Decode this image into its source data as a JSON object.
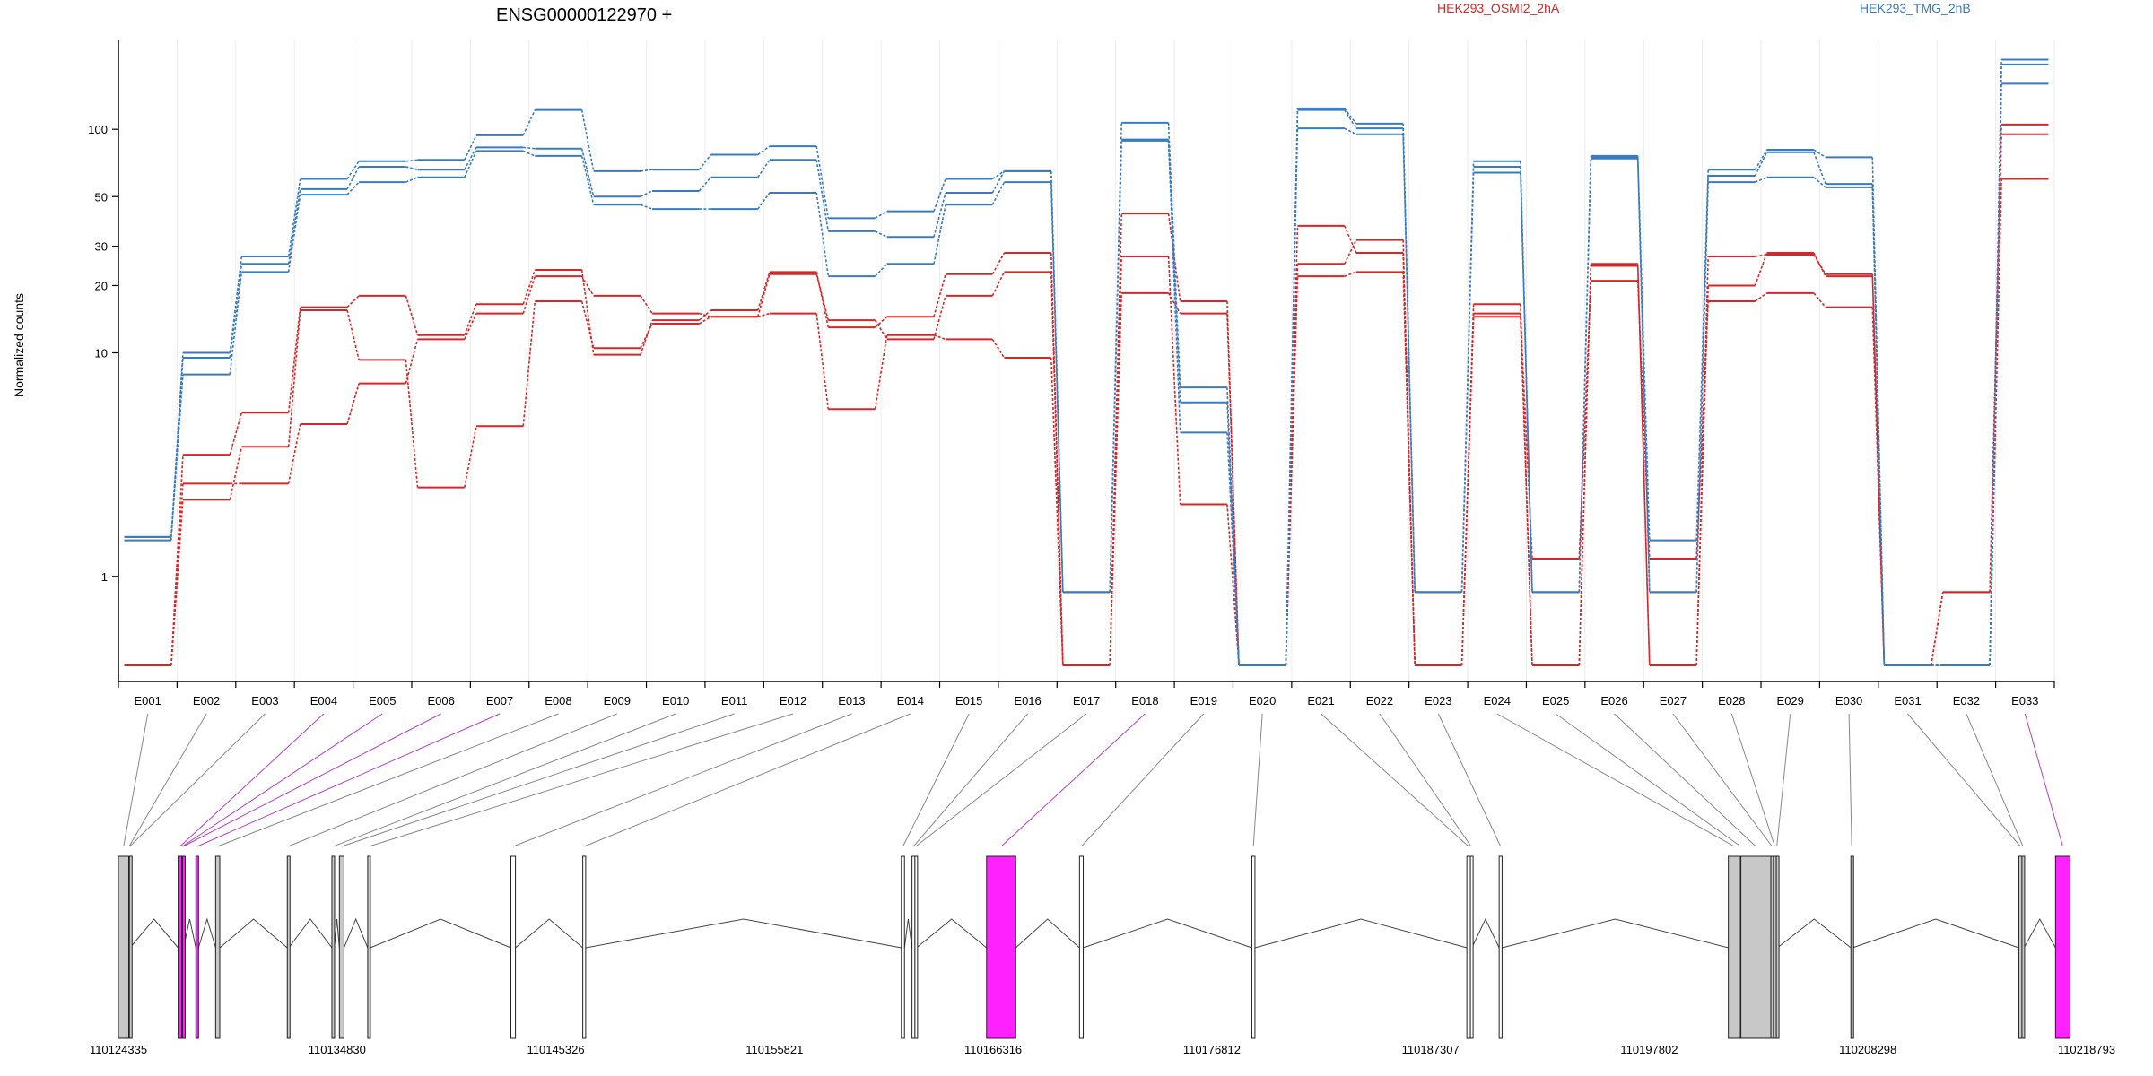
{
  "chart_data": {
    "type": "line",
    "title": "ENSG00000122970 +",
    "ylabel": "Normalized counts",
    "yscale": "log",
    "yticks": [
      1,
      10,
      20,
      30,
      50,
      100
    ],
    "ylim": [
      0.4,
      250
    ],
    "zero_floor": 0.4,
    "categories": [
      "E001",
      "E002",
      "E003",
      "E004",
      "E005",
      "E006",
      "E007",
      "E008",
      "E009",
      "E010",
      "E011",
      "E012",
      "E013",
      "E014",
      "E015",
      "E016",
      "E017",
      "E018",
      "E019",
      "E020",
      "E021",
      "E022",
      "E023",
      "E024",
      "E025",
      "E026",
      "E027",
      "E028",
      "E029",
      "E030",
      "E031",
      "E032",
      "E033"
    ],
    "series": [
      {
        "name": "HEK293_OSMI2_2hA",
        "color": "#d62728",
        "values": [
          0.4,
          2.2,
          3.8,
          15.5,
          9.3,
          2.5,
          4.7,
          17,
          10.5,
          13.5,
          14.5,
          15,
          5.6,
          12,
          11.5,
          9.5,
          0.4,
          18.5,
          15,
          0.4,
          22,
          23,
          0.4,
          15,
          1.2,
          21,
          1.2,
          17,
          18.5,
          16,
          0.4,
          0.4,
          60
        ]
      },
      {
        "name": "HEK293_OSMI2_2hA",
        "color": "#d62728",
        "values": [
          0.4,
          2.6,
          2.6,
          4.8,
          7.3,
          11.5,
          15,
          22,
          18,
          15,
          14.5,
          22.5,
          14,
          11.5,
          18,
          23,
          0.4,
          27,
          2.1,
          0.4,
          37,
          28,
          0.4,
          14.5,
          0.4,
          24.5,
          0.4,
          27,
          27.5,
          22.5,
          0.4,
          0.85,
          95
        ]
      },
      {
        "name": "HEK293_OSMI2_2hA",
        "color": "#d62728",
        "values": [
          0.4,
          3.5,
          5.4,
          16,
          18,
          12,
          16.5,
          23.5,
          9.8,
          14,
          15.5,
          23,
          13,
          14.5,
          22.5,
          28,
          0.4,
          42,
          17,
          0.4,
          25,
          32,
          0.4,
          16.5,
          0.4,
          25,
          0.4,
          20,
          28,
          22,
          0.4,
          0.85,
          105
        ]
      },
      {
        "name": "HEK293_TMG_2hB",
        "color": "#3a7bbf",
        "values": [
          1.5,
          8,
          23,
          51,
          58,
          61,
          80,
          76,
          46,
          44,
          44,
          52,
          22,
          25,
          46,
          58,
          0.85,
          89,
          4.4,
          0.4,
          101,
          95,
          0.85,
          64,
          0.85,
          74,
          0.85,
          58,
          61,
          55,
          0.4,
          0.4,
          160
        ]
      },
      {
        "name": "HEK293_TMG_2hB",
        "color": "#3a7bbf",
        "values": [
          1.45,
          9.5,
          25,
          54,
          68,
          66,
          83,
          82,
          50,
          53,
          61,
          73,
          35,
          33,
          52,
          65,
          0.85,
          90,
          6,
          0.4,
          122,
          101,
          0.85,
          68,
          0.85,
          75,
          0.85,
          62,
          79,
          57,
          0.4,
          0.4,
          195
        ]
      },
      {
        "name": "HEK293_TMG_2hB",
        "color": "#3a7bbf",
        "values": [
          1.5,
          10,
          27,
          60,
          72,
          73,
          94,
          122,
          65,
          66,
          77,
          84,
          40,
          43,
          60,
          65,
          0.85,
          107,
          7,
          0.4,
          124,
          106,
          0.85,
          72,
          0.85,
          76,
          1.45,
          66,
          81,
          75,
          0.4,
          0.4,
          205
        ]
      }
    ],
    "genomic_ticks": [
      "110124335",
      "110134830",
      "110145326",
      "110155821",
      "110166316",
      "110176812",
      "110187307",
      "110197802",
      "110208298",
      "110218793"
    ],
    "gene_range": [
      110124335,
      110218793
    ],
    "exons": [
      {
        "id": "E001",
        "start": 110124335,
        "end": 110124830,
        "color": "#c8c8c8"
      },
      {
        "id": "E002",
        "start": 110124830,
        "end": 110124862,
        "color": "#c8c8c8"
      },
      {
        "id": "E003",
        "start": 110124862,
        "end": 110124890,
        "color": "#c8c8c8"
      },
      {
        "id": "E004",
        "start": 110127200,
        "end": 110127380,
        "color": "#ff22ff"
      },
      {
        "id": "E005",
        "start": 110127380,
        "end": 110127410,
        "color": "#ff22ff"
      },
      {
        "id": "E006",
        "start": 110127410,
        "end": 110127460,
        "color": "#ff22ff"
      },
      {
        "id": "E007",
        "start": 110128050,
        "end": 110128180,
        "color": "#ff22ff"
      },
      {
        "id": "E008",
        "start": 110129000,
        "end": 110129200,
        "color": "#c8c8c8"
      },
      {
        "id": "E009",
        "start": 110132440,
        "end": 110132510,
        "color": "#c8c8c8"
      },
      {
        "id": "E010",
        "start": 110134580,
        "end": 110134700,
        "color": "#c8c8c8"
      },
      {
        "id": "E011",
        "start": 110134940,
        "end": 110135160,
        "color": "#c8c8c8"
      },
      {
        "id": "E012",
        "start": 110136300,
        "end": 110136420,
        "color": "#c8c8c8"
      },
      {
        "id": "E013",
        "start": 110143170,
        "end": 110143390,
        "color": "#ffffff"
      },
      {
        "id": "E014",
        "start": 110146620,
        "end": 110146760,
        "color": "#ffffff"
      },
      {
        "id": "E015",
        "start": 110161910,
        "end": 110162060,
        "color": "#ffffff"
      },
      {
        "id": "E016",
        "start": 110162420,
        "end": 110162560,
        "color": "#ffffff"
      },
      {
        "id": "E017",
        "start": 110162560,
        "end": 110162640,
        "color": "#ffffff"
      },
      {
        "id": "E018",
        "start": 110166000,
        "end": 110167400,
        "color": "#ff22ff"
      },
      {
        "id": "E019",
        "start": 110170460,
        "end": 110170640,
        "color": "#ffffff"
      },
      {
        "id": "E020",
        "start": 110178730,
        "end": 110178880,
        "color": "#ffffff"
      },
      {
        "id": "E021",
        "start": 110189050,
        "end": 110189220,
        "color": "#ffffff"
      },
      {
        "id": "E022",
        "start": 110189220,
        "end": 110189290,
        "color": "#ffffff"
      },
      {
        "id": "E023",
        "start": 110190600,
        "end": 110190740,
        "color": "#ffffff"
      },
      {
        "id": "E024",
        "start": 110201600,
        "end": 110202180,
        "color": "#c8c8c8"
      },
      {
        "id": "E025",
        "start": 110202180,
        "end": 110202200,
        "color": "#c8c8c8"
      },
      {
        "id": "E026",
        "start": 110202200,
        "end": 110203640,
        "color": "#c8c8c8"
      },
      {
        "id": "E027",
        "start": 110203640,
        "end": 110203760,
        "color": "#c8c8c8"
      },
      {
        "id": "E028",
        "start": 110203760,
        "end": 110203900,
        "color": "#c8c8c8"
      },
      {
        "id": "E029",
        "start": 110203900,
        "end": 110203950,
        "color": "#c8c8c8"
      },
      {
        "id": "E030",
        "start": 110207480,
        "end": 110207560,
        "color": "#c8c8c8"
      },
      {
        "id": "E031",
        "start": 110215540,
        "end": 110215690,
        "color": "#c8c8c8"
      },
      {
        "id": "E032",
        "start": 110215690,
        "end": 110215790,
        "color": "#c8c8c8"
      },
      {
        "id": "E033",
        "start": 110217300,
        "end": 110218000,
        "color": "#ff22ff"
      }
    ]
  }
}
